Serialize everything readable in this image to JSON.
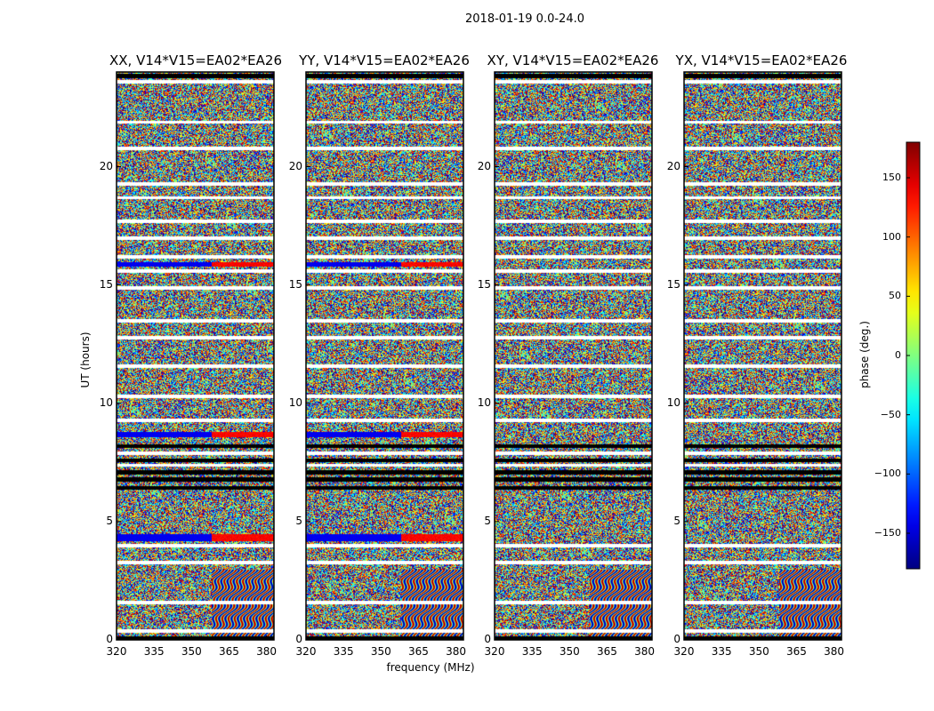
{
  "chart_data": {
    "type": "heatmap",
    "title": "2018-01-19 0.0-24.0",
    "xlabel": "frequency (MHz)",
    "ylabel": "UT (hours)",
    "xlim": [
      320,
      383
    ],
    "ylim": [
      0,
      24
    ],
    "xticks": [
      "320",
      "335",
      "350",
      "365",
      "380"
    ],
    "yticks": [
      "0",
      "5",
      "10",
      "15",
      "20"
    ],
    "panels": [
      {
        "title": "XX, V14*V15=EA02*EA26"
      },
      {
        "title": "YY, V14*V15=EA02*EA26"
      },
      {
        "title": "XY, V14*V15=EA02*EA26"
      },
      {
        "title": "YX, V14*V15=EA02*EA26"
      }
    ],
    "colorbar": {
      "label": "phase (deg.)",
      "range": [
        -180,
        180
      ],
      "ticks": [
        "150",
        "100",
        "50",
        "0",
        "−50",
        "−100",
        "−150"
      ],
      "colormap": "jet"
    }
  }
}
